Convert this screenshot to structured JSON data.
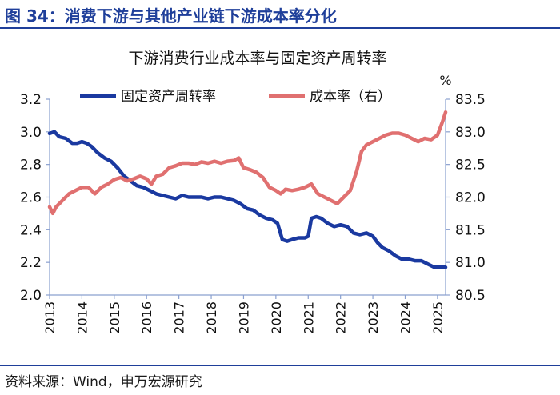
{
  "figure": {
    "title": "图 34：消费下游与其他产业链下游成本率分化",
    "source": "资料来源：Wind，申万宏源研究",
    "accent_color": "#1f3f9a"
  },
  "chart_data": {
    "type": "line",
    "title": "下游消费行业成本率与固定资产周转率",
    "unit_right": "%",
    "x_tick_labels": [
      "2013",
      "2014",
      "2015",
      "2016",
      "2017",
      "2018",
      "2019",
      "2020",
      "2021",
      "2022",
      "2023",
      "2024",
      "2025"
    ],
    "x_range": [
      2013.0,
      2025.25
    ],
    "y_left": {
      "range": [
        2.0,
        3.2
      ],
      "ticks": [
        "2.0",
        "2.2",
        "2.4",
        "2.6",
        "2.8",
        "3.0",
        "3.2"
      ]
    },
    "y_right": {
      "range": [
        80.5,
        83.5
      ],
      "ticks": [
        "80.5",
        "81.0",
        "81.5",
        "82.0",
        "82.5",
        "83.0",
        "83.5"
      ]
    },
    "series": [
      {
        "name": "固定资产周转率",
        "axis": "left",
        "color": "#1a39a0",
        "x": [
          2013.0,
          2013.15,
          2013.3,
          2013.5,
          2013.7,
          2013.85,
          2014.0,
          2014.15,
          2014.3,
          2014.5,
          2014.7,
          2014.9,
          2015.1,
          2015.3,
          2015.5,
          2015.7,
          2015.9,
          2016.1,
          2016.3,
          2016.5,
          2016.7,
          2016.9,
          2017.1,
          2017.3,
          2017.5,
          2017.7,
          2017.9,
          2018.1,
          2018.3,
          2018.5,
          2018.7,
          2018.9,
          2019.1,
          2019.3,
          2019.5,
          2019.7,
          2019.9,
          2020.05,
          2020.2,
          2020.35,
          2020.5,
          2020.7,
          2020.9,
          2021.0,
          2021.1,
          2021.25,
          2021.4,
          2021.6,
          2021.8,
          2022.0,
          2022.2,
          2022.4,
          2022.6,
          2022.8,
          2023.0,
          2023.15,
          2023.3,
          2023.5,
          2023.7,
          2023.9,
          2024.1,
          2024.3,
          2024.5,
          2024.7,
          2024.9,
          2025.1,
          2025.25
        ],
        "values": [
          2.99,
          3.0,
          2.97,
          2.96,
          2.93,
          2.93,
          2.94,
          2.93,
          2.91,
          2.87,
          2.84,
          2.82,
          2.78,
          2.73,
          2.7,
          2.67,
          2.66,
          2.64,
          2.62,
          2.61,
          2.6,
          2.59,
          2.61,
          2.6,
          2.6,
          2.6,
          2.59,
          2.6,
          2.6,
          2.59,
          2.58,
          2.56,
          2.53,
          2.52,
          2.49,
          2.47,
          2.46,
          2.44,
          2.34,
          2.33,
          2.34,
          2.35,
          2.35,
          2.36,
          2.47,
          2.48,
          2.47,
          2.44,
          2.42,
          2.43,
          2.42,
          2.38,
          2.37,
          2.38,
          2.36,
          2.32,
          2.29,
          2.27,
          2.24,
          2.22,
          2.22,
          2.21,
          2.21,
          2.19,
          2.17,
          2.17,
          2.17
        ]
      },
      {
        "name": "成本率（右）",
        "axis": "right",
        "color": "#e07070",
        "x": [
          2013.0,
          2013.1,
          2013.2,
          2013.4,
          2013.6,
          2013.8,
          2014.0,
          2014.2,
          2014.4,
          2014.6,
          2014.8,
          2015.0,
          2015.2,
          2015.4,
          2015.6,
          2015.8,
          2016.0,
          2016.15,
          2016.3,
          2016.5,
          2016.7,
          2016.9,
          2017.1,
          2017.3,
          2017.5,
          2017.7,
          2017.9,
          2018.1,
          2018.3,
          2018.5,
          2018.7,
          2018.85,
          2019.0,
          2019.2,
          2019.4,
          2019.6,
          2019.8,
          2020.0,
          2020.15,
          2020.3,
          2020.5,
          2020.7,
          2020.9,
          2021.1,
          2021.3,
          2021.5,
          2021.7,
          2021.9,
          2022.1,
          2022.3,
          2022.5,
          2022.65,
          2022.8,
          2023.0,
          2023.2,
          2023.4,
          2023.6,
          2023.8,
          2024.0,
          2024.2,
          2024.4,
          2024.6,
          2024.8,
          2025.0,
          2025.15,
          2025.25
        ],
        "values": [
          81.85,
          81.75,
          81.85,
          81.95,
          82.05,
          82.1,
          82.15,
          82.15,
          82.05,
          82.15,
          82.2,
          82.27,
          82.3,
          82.25,
          82.28,
          82.32,
          82.28,
          82.2,
          82.32,
          82.35,
          82.45,
          82.48,
          82.52,
          82.52,
          82.5,
          82.54,
          82.52,
          82.55,
          82.52,
          82.55,
          82.56,
          82.6,
          82.45,
          82.42,
          82.38,
          82.3,
          82.15,
          82.1,
          82.05,
          82.12,
          82.1,
          82.12,
          82.15,
          82.2,
          82.05,
          82.0,
          81.95,
          81.9,
          82.0,
          82.1,
          82.4,
          82.7,
          82.8,
          82.85,
          82.9,
          82.95,
          82.98,
          82.98,
          82.95,
          82.9,
          82.85,
          82.9,
          82.88,
          82.95,
          83.15,
          83.3
        ]
      }
    ]
  }
}
